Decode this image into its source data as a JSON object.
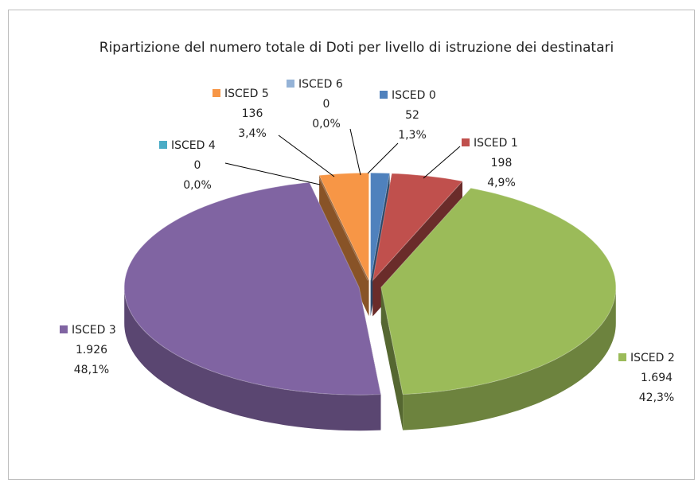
{
  "chart_data": {
    "type": "pie3d",
    "title": "Ripartizione del numero totale di Doti per livello di istruzione dei destinatari",
    "categories": [
      "ISCED 0",
      "ISCED 1",
      "ISCED 2",
      "ISCED 3",
      "ISCED 4",
      "ISCED 5",
      "ISCED 6"
    ],
    "values": [
      52,
      198,
      1694,
      1926,
      0,
      136,
      0
    ],
    "value_labels": [
      "52",
      "198",
      "1.694",
      "1.926",
      "0",
      "136",
      "0"
    ],
    "percentages": [
      1.3,
      4.9,
      42.3,
      48.1,
      0.0,
      3.4,
      0.0
    ],
    "percentage_labels": [
      "1,3%",
      "4,9%",
      "42,3%",
      "48,1%",
      "0,0%",
      "3,4%",
      "0,0%"
    ],
    "colors": [
      "#4f81bd",
      "#c0504d",
      "#9bbb59",
      "#8064a2",
      "#4bacc6",
      "#f79646",
      "#95b3d7"
    ]
  }
}
